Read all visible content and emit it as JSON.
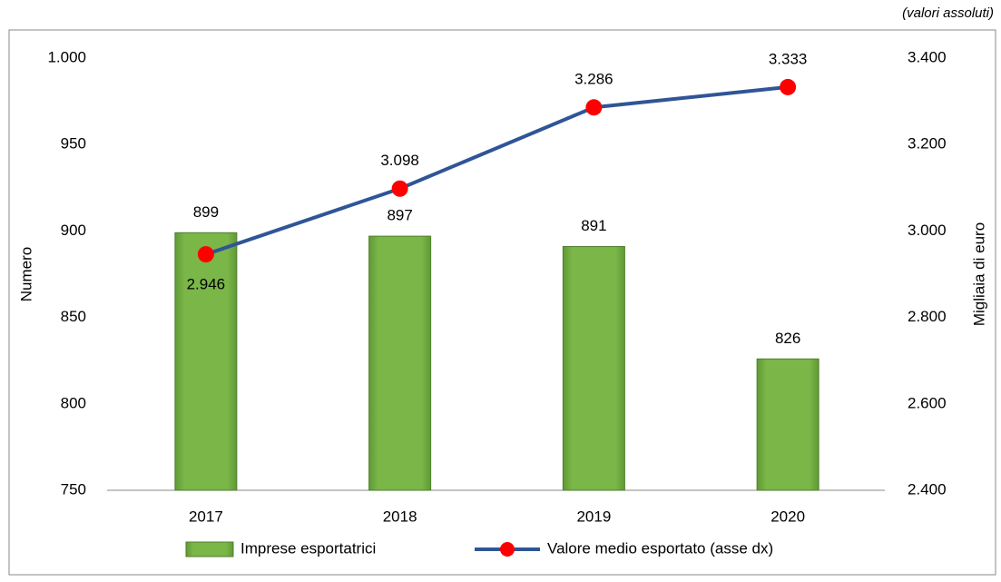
{
  "chart_data": {
    "type": "bar",
    "annotation": "(valori assoluti)",
    "y_label": "Numero",
    "y2_label": "Migliaia di euro",
    "categories": [
      "2017",
      "2018",
      "2019",
      "2020"
    ],
    "series": [
      {
        "name": "Imprese esportatrici",
        "type": "bar",
        "color": "#7ab648",
        "values": [
          899,
          897,
          891,
          826
        ]
      },
      {
        "name": "Valore medio esportato (asse dx)",
        "type": "line",
        "axis": "y2",
        "color": "#2f5597",
        "marker_color": "#ff0000",
        "values": [
          2946,
          3098,
          3286,
          3333
        ],
        "value_labels": [
          "2.946",
          "3.098",
          "3.286",
          "3.333"
        ]
      }
    ],
    "ylim": [
      750,
      1000
    ],
    "yticks": [
      750,
      800,
      850,
      900,
      950,
      {
        "value": 1000,
        "label": "1.000"
      }
    ],
    "y2lim": [
      2400,
      3400
    ],
    "y2ticks": [
      {
        "value": 2400,
        "label": "2.400"
      },
      {
        "value": 2600,
        "label": "2.600"
      },
      {
        "value": 2800,
        "label": "2.800"
      },
      {
        "value": 3000,
        "label": "3.000"
      },
      {
        "value": 3200,
        "label": "3.200"
      },
      {
        "value": 3400,
        "label": "3.400"
      }
    ],
    "grid": false,
    "legend": "bottom"
  }
}
